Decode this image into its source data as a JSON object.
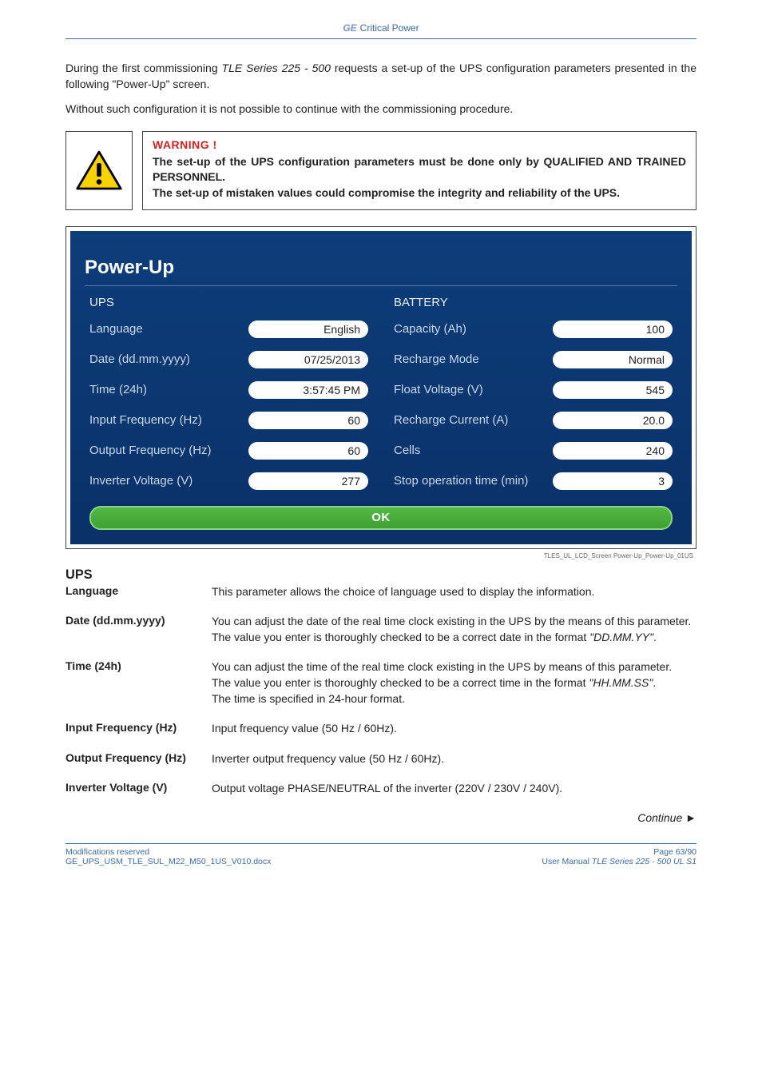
{
  "header": {
    "brand_prefix": "GE",
    "brand_text": "Critical Power"
  },
  "intro": {
    "p1_a": "During the first commissioning ",
    "p1_italic": "TLE Series 225 - 500",
    "p1_b": " requests a set-up of the UPS configuration parameters presented in the following \"Power-Up\" screen.",
    "p2": "Without such configuration it is not possible to continue with the commissioning procedure."
  },
  "warning": {
    "title": "WARNING !",
    "line1": "The set-up of the UPS configuration parameters must be done only by QUALIFIED AND TRAINED PERSONNEL.",
    "line2": "The set-up of mistaken values could compromise the integrity and reliability of the UPS.",
    "icon_colors": {
      "border": "#000000",
      "fill": "#f7d400",
      "glyph": "#000000"
    }
  },
  "screen": {
    "title": "Power-Up",
    "background_top": "#0d3d7a",
    "background_bottom": "#0a3168",
    "label_color": "#c9d8ef",
    "pill_bg": "#ffffff",
    "pill_text": "#222222",
    "ok_label": "OK",
    "ok_gradient_top": "#53b845",
    "ok_gradient_bottom": "#3fa032",
    "ok_border": "#8dd37f",
    "left": {
      "heading": "UPS",
      "rows": [
        {
          "label": "Language",
          "value": "English"
        },
        {
          "label": "Date (dd.mm.yyyy)",
          "value": "07/25/2013"
        },
        {
          "label": "Time (24h)",
          "value": "3:57:45 PM"
        },
        {
          "label": "Input Frequency (Hz)",
          "value": "60"
        },
        {
          "label": "Output Frequency (Hz)",
          "value": "60"
        },
        {
          "label": "Inverter Voltage (V)",
          "value": "277"
        }
      ]
    },
    "right": {
      "heading": "BATTERY",
      "rows": [
        {
          "label": "Capacity (Ah)",
          "value": "100"
        },
        {
          "label": "Recharge Mode",
          "value": "Normal"
        },
        {
          "label": "Float Voltage (V)",
          "value": "545"
        },
        {
          "label": "Recharge Current (A)",
          "value": "20.0"
        },
        {
          "label": "Cells",
          "value": "240"
        },
        {
          "label": "Stop operation time (min)",
          "value": "3"
        }
      ]
    },
    "filename": "TLES_UL_LCD_Screen Power-Up_Power-Up_01US"
  },
  "defs": {
    "heading": "UPS",
    "items": [
      {
        "label": "Language",
        "body": "This parameter allows the choice of language used to display the information."
      },
      {
        "label": "Date (dd.mm.yyyy)",
        "body": "You can adjust the date of the real time clock existing in the UPS by the means of this parameter.\nThe value you enter is thoroughly checked to be a correct date in the format \"DD.MM.YY\"."
      },
      {
        "label": "Time (24h)",
        "body": "You can adjust the time of the real time clock existing in the UPS by means of this parameter.\nThe value you enter is thoroughly checked to be a correct time in the format \"HH.MM.SS\".\nThe time is specified in 24-hour format."
      },
      {
        "label": "Input Frequency (Hz)",
        "body": "Input frequency value (50 Hz / 60Hz)."
      },
      {
        "label": "Output Frequency (Hz)",
        "body": "Inverter output frequency value (50 Hz / 60Hz)."
      },
      {
        "label": "Inverter Voltage (V)",
        "body": "Output voltage PHASE/NEUTRAL of the inverter (220V / 230V / 240V)."
      }
    ]
  },
  "continue": {
    "text": "Continue ",
    "arrow": "►"
  },
  "footer": {
    "left1": "Modifications reserved",
    "left2": "GE_UPS_USM_TLE_SUL_M22_M50_1US_V010.docx",
    "right1": "Page 63/90",
    "right2_a": "User Manual ",
    "right2_italic": "TLE Series 225 - 500 UL S1"
  }
}
